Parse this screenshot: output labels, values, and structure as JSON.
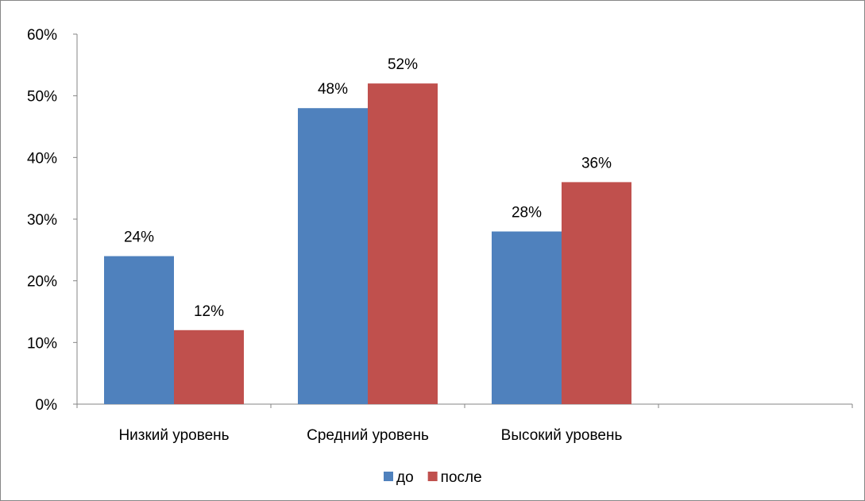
{
  "chart_data": {
    "type": "bar",
    "categories": [
      "Низкий уровень",
      "Средний уровень",
      "Высокий уровень"
    ],
    "series": [
      {
        "name": "до",
        "values": [
          24,
          48,
          28
        ],
        "labels": [
          "24%",
          "48%",
          "28%"
        ],
        "color": "#4f81bd"
      },
      {
        "name": "после",
        "values": [
          12,
          52,
          36
        ],
        "labels": [
          "12%",
          "52%",
          "36%"
        ],
        "color": "#c0504d"
      }
    ],
    "yticks": [
      "0%",
      "10%",
      "20%",
      "30%",
      "40%",
      "50%",
      "60%"
    ],
    "ylim": [
      0,
      60
    ],
    "grid": false,
    "legend": "bottom"
  }
}
